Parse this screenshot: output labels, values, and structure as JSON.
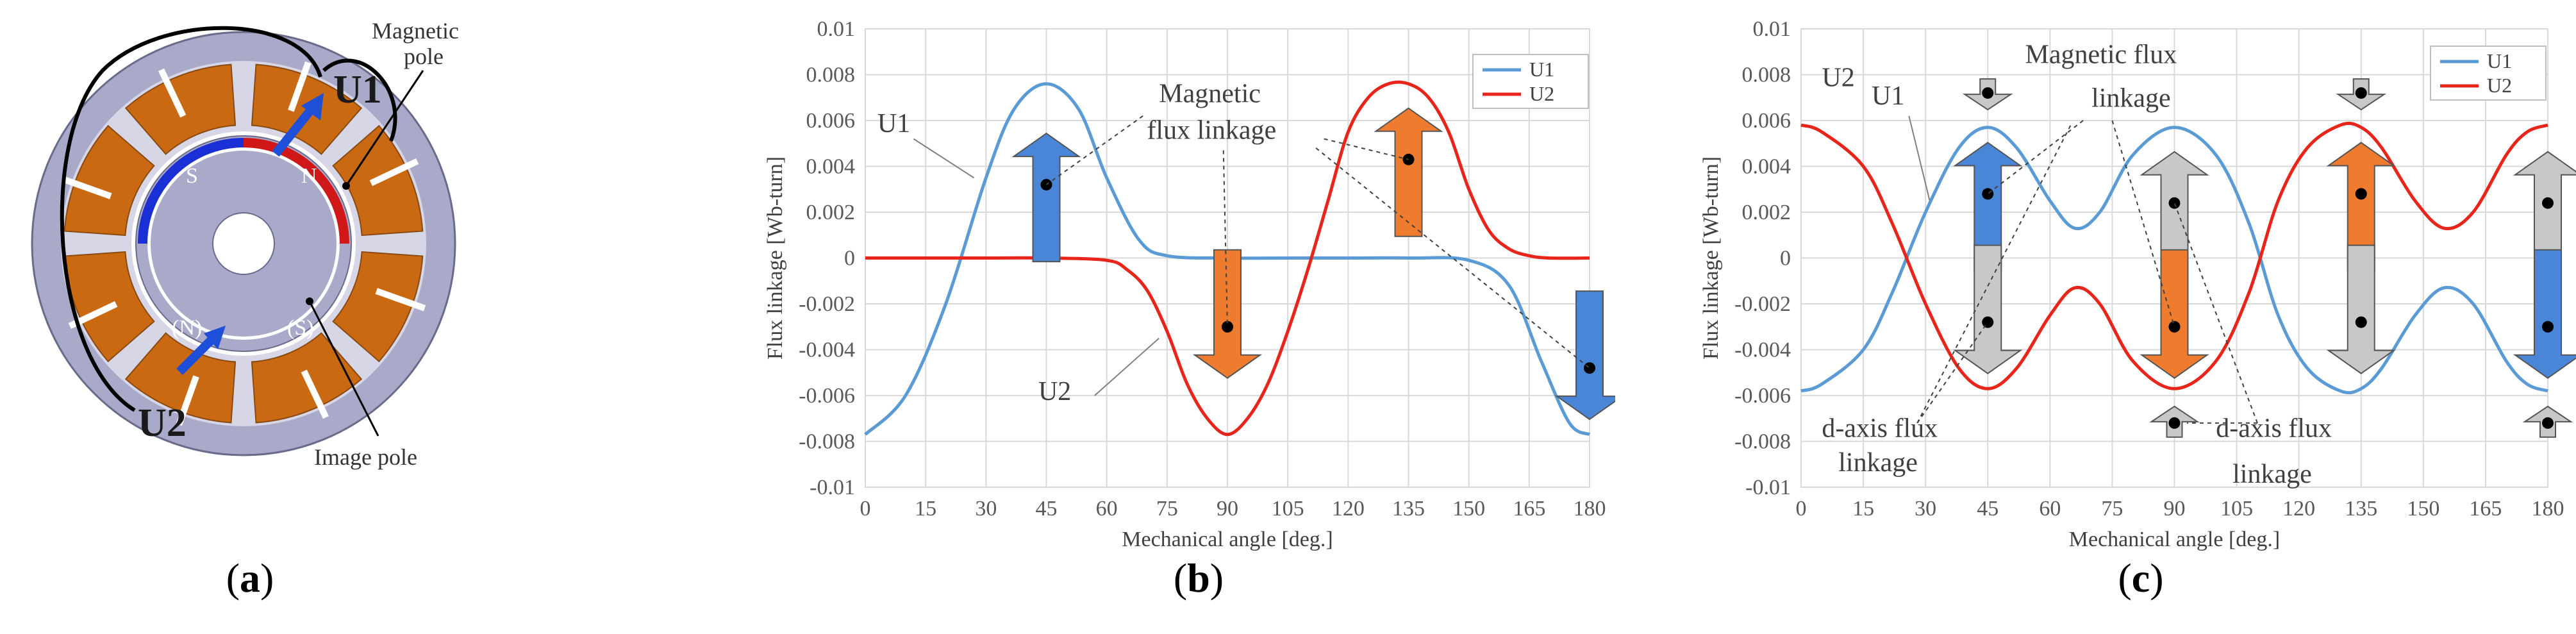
{
  "panel_a": {
    "label_letter": "a",
    "labels": {
      "magnetic_pole": [
        "Magnetic",
        "pole"
      ],
      "image_pole": "Image pole",
      "u1": "U1",
      "u2": "U2",
      "n": "N",
      "s": "S",
      "n_paren": "(N)",
      "s_paren": "(S)"
    },
    "colors": {
      "orange": "#c96a12",
      "lavender": "#a9a9c9",
      "blue": "#1a2fd6",
      "red": "#d01818",
      "arrow": "#1f4fd8"
    }
  },
  "chart_data": [
    {
      "id": "b",
      "type": "line",
      "label_letter": "b",
      "xlabel": "Mechanical angle [deg.]",
      "ylabel": "Flux linkage [Wb-turn]",
      "xlim": [
        0,
        180
      ],
      "ylim": [
        -0.01,
        0.01
      ],
      "xticks": [
        "0",
        "15",
        "30",
        "45",
        "60",
        "75",
        "90",
        "105",
        "120",
        "135",
        "150",
        "165",
        "180"
      ],
      "yticks": [
        "0.01",
        "0.008",
        "0.006",
        "0.004",
        "0.002",
        "0",
        "-0.002",
        "-0.004",
        "-0.006",
        "-0.008",
        "-0.01"
      ],
      "legend": [
        "U1",
        "U2"
      ],
      "grid": true,
      "series": [
        {
          "name": "U1",
          "color": "#5b9bd5",
          "x": [
            0,
            10,
            20,
            30,
            37,
            45,
            53,
            60,
            68,
            75,
            90,
            105,
            120,
            135,
            150,
            160,
            168,
            175,
            180
          ],
          "y": [
            -0.0077,
            -0.006,
            -0.002,
            0.0035,
            0.0065,
            0.0076,
            0.0065,
            0.0035,
            0.0008,
            0.0001,
            0,
            0,
            0,
            0,
            -0.0001,
            -0.0012,
            -0.0045,
            -0.0072,
            -0.0077
          ]
        },
        {
          "name": "U2",
          "color": "#e8251a",
          "x": [
            0,
            15,
            30,
            45,
            60,
            65,
            70,
            75,
            80,
            85,
            90,
            95,
            100,
            105,
            110,
            115,
            120,
            125,
            130,
            135,
            140,
            145,
            150,
            155,
            160,
            165,
            170,
            180
          ],
          "y": [
            0,
            0,
            0,
            0,
            -0.0001,
            -0.0005,
            -0.0014,
            -0.0032,
            -0.0055,
            -0.007,
            -0.0077,
            -0.007,
            -0.0055,
            -0.0032,
            -0.0005,
            0.0025,
            0.0055,
            0.007,
            0.0076,
            0.0076,
            0.007,
            0.0055,
            0.003,
            0.0012,
            0.0004,
            0.0001,
            0,
            0
          ]
        }
      ],
      "annotations": {
        "u1": "U1",
        "u2": "U2",
        "magnetic_flux_linkage": [
          "Magnetic",
          "flux linkage"
        ]
      },
      "markers": [
        {
          "x": 45,
          "y": 0.0032,
          "color": "#4a86d8",
          "dir": "up"
        },
        {
          "x": 90,
          "y": -0.003,
          "color": "#ef7b2e",
          "dir": "down"
        },
        {
          "x": 135,
          "y": 0.0043,
          "color": "#ef7b2e",
          "dir": "up"
        },
        {
          "x": 180,
          "y": -0.0048,
          "color": "#4a86d8",
          "dir": "down"
        }
      ]
    },
    {
      "id": "c",
      "type": "line",
      "label_letter": "c",
      "xlabel": "Mechanical angle [deg.]",
      "ylabel": "Flux linkage [Wb-turn]",
      "xlim": [
        0,
        180
      ],
      "ylim": [
        -0.01,
        0.01
      ],
      "xticks": [
        "0",
        "15",
        "30",
        "45",
        "60",
        "75",
        "90",
        "105",
        "120",
        "135",
        "150",
        "165",
        "180"
      ],
      "yticks": [
        "0.01",
        "0.008",
        "0.006",
        "0.004",
        "0.002",
        "0",
        "-0.002",
        "-0.004",
        "-0.006",
        "-0.008",
        "-0.01"
      ],
      "legend": [
        "U1",
        "U2"
      ],
      "grid": true,
      "series": [
        {
          "name": "U1",
          "color": "#5b9bd5",
          "x": [
            0,
            5,
            15,
            22,
            30,
            38,
            45,
            52,
            60,
            66,
            72,
            80,
            90,
            100,
            108,
            115,
            122,
            130,
            135,
            140,
            148,
            155,
            162,
            170,
            175,
            180
          ],
          "y": [
            -0.0058,
            -0.0055,
            -0.004,
            -0.0015,
            0.002,
            0.0048,
            0.0057,
            0.0048,
            0.0025,
            0.0013,
            0.002,
            0.0045,
            0.0057,
            0.0045,
            0.0015,
            -0.0025,
            -0.0048,
            -0.0058,
            -0.0057,
            -0.0048,
            -0.0025,
            -0.0013,
            -0.002,
            -0.0045,
            -0.0055,
            -0.0058
          ]
        },
        {
          "name": "U2",
          "color": "#e8251a",
          "x": [
            0,
            5,
            15,
            22,
            30,
            38,
            45,
            52,
            60,
            66,
            72,
            80,
            90,
            100,
            108,
            115,
            122,
            130,
            135,
            140,
            148,
            155,
            162,
            170,
            175,
            180
          ],
          "y": [
            0.0058,
            0.0055,
            0.004,
            0.0015,
            -0.002,
            -0.0048,
            -0.0057,
            -0.0048,
            -0.0025,
            -0.0013,
            -0.002,
            -0.0045,
            -0.0057,
            -0.0045,
            -0.0015,
            0.0025,
            0.0048,
            0.0058,
            0.0057,
            0.0048,
            0.0025,
            0.0013,
            0.002,
            0.0045,
            0.0055,
            0.0058
          ]
        }
      ],
      "annotations": {
        "u1": "U1",
        "u2": "U2",
        "magnetic_flux_linkage": [
          "Magnetic flux",
          "linkage"
        ],
        "d_axis_left": [
          "d-axis flux",
          "linkage"
        ],
        "d_axis_right": [
          "d-axis flux",
          "linkage"
        ]
      },
      "markers": [
        {
          "x": 45,
          "y": 0.0028,
          "color": "#4a86d8",
          "dir": "up"
        },
        {
          "x": 45,
          "y": -0.0028,
          "color": "#c8c8c8",
          "dir": "down"
        },
        {
          "x": 45,
          "y": 0.0072,
          "color": "#c8c8c8",
          "dir": "down-small"
        },
        {
          "x": 90,
          "y": 0.0024,
          "color": "#c8c8c8",
          "dir": "up"
        },
        {
          "x": 90,
          "y": -0.003,
          "color": "#ef7b2e",
          "dir": "down"
        },
        {
          "x": 90,
          "y": -0.0072,
          "color": "#c8c8c8",
          "dir": "up-small"
        },
        {
          "x": 135,
          "y": 0.0028,
          "color": "#ef7b2e",
          "dir": "up"
        },
        {
          "x": 135,
          "y": -0.0028,
          "color": "#c8c8c8",
          "dir": "down"
        },
        {
          "x": 135,
          "y": 0.0072,
          "color": "#c8c8c8",
          "dir": "down-small"
        },
        {
          "x": 180,
          "y": 0.0024,
          "color": "#c8c8c8",
          "dir": "up"
        },
        {
          "x": 180,
          "y": -0.003,
          "color": "#4a86d8",
          "dir": "down"
        },
        {
          "x": 180,
          "y": -0.0072,
          "color": "#c8c8c8",
          "dir": "up-small"
        }
      ]
    }
  ]
}
